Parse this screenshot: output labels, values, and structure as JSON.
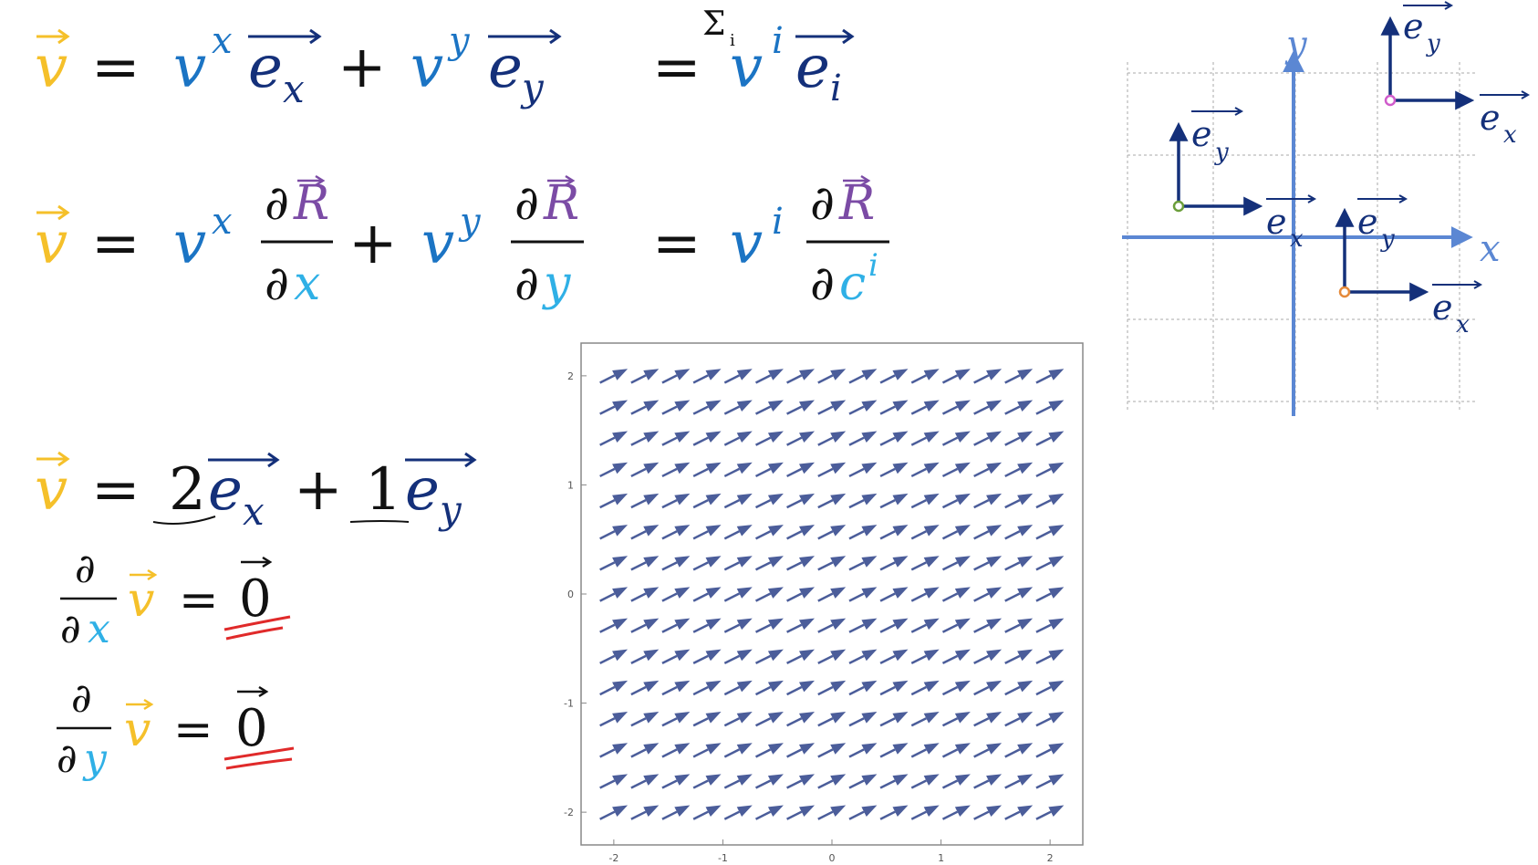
{
  "colors": {
    "v_vector": "#F5C02A",
    "component": "#1B74C4",
    "basis": "#14307A",
    "position_R": "#7B4BA5",
    "coordinate": "#2FB0E6",
    "black": "#111111",
    "red_underline": "#E02A2A",
    "axis_blue": "#5B87D3",
    "grid_gray": "#A9A9A9",
    "field_arrow": "#4B5D9A",
    "dot_green": "#6B9E3B",
    "dot_pink": "#D05CCB",
    "dot_orange": "#E58A3A"
  },
  "equations": {
    "eq1": {
      "v": "v",
      "eq": "=",
      "vx": "v",
      "sup_x": "x",
      "e": "e",
      "sub_x": "x",
      "plus": "+",
      "vy": "v",
      "sup_y": "y",
      "sub_y": "y",
      "eq2": "=",
      "vi": "v",
      "sup_i": "i",
      "sub_i": "i",
      "note": "Σ",
      "note_sub": "i"
    },
    "eq2": {
      "v": "v",
      "eq": "=",
      "vx": "v",
      "sup_x": "x",
      "partial": "∂",
      "R": "R",
      "den_x": "x",
      "plus": "+",
      "vy": "v",
      "sup_y": "y",
      "den_y": "y",
      "eq2": "=",
      "vi": "v",
      "sup_i": "i",
      "den_c": "c",
      "den_sup_i": "i"
    },
    "eq3": {
      "v": "v",
      "eq": "=",
      "coef1": "2",
      "e": "e",
      "sub_x": "x",
      "plus": "+",
      "coef2": "1",
      "sub_y": "y"
    },
    "eq4": {
      "partial": "∂",
      "den_x": "x",
      "v": "v",
      "eq": "=",
      "zero": "0"
    },
    "eq5": {
      "partial": "∂",
      "den_y": "y",
      "v": "v",
      "eq": "=",
      "zero": "0"
    }
  },
  "axes_diagram": {
    "x_label": "x",
    "y_label": "y",
    "e": "e",
    "sub_x": "x",
    "sub_y": "y"
  },
  "chart_data": {
    "type": "quiver",
    "vector": [
      2,
      1
    ],
    "xlim": [
      -2.3,
      2.3
    ],
    "ylim": [
      -2.3,
      2.3
    ],
    "x_ticks": [
      -2,
      -1,
      0,
      1,
      2
    ],
    "y_ticks": [
      -2,
      -1,
      0,
      1,
      2
    ],
    "x_tick_labels": [
      "-2",
      "-1",
      "0",
      "1",
      "2"
    ],
    "y_tick_labels": [
      "-2",
      "-1",
      "0",
      "1",
      "2"
    ],
    "grid_x": [
      -2,
      -1.714,
      -1.429,
      -1.143,
      -0.857,
      -0.571,
      -0.286,
      0,
      0.286,
      0.571,
      0.857,
      1.143,
      1.429,
      1.714,
      2
    ],
    "grid_y": [
      -2,
      -1.714,
      -1.429,
      -1.143,
      -0.857,
      -0.571,
      -0.286,
      0,
      0.286,
      0.571,
      0.857,
      1.143,
      1.429,
      1.714,
      2
    ],
    "title": "",
    "xlabel": "",
    "ylabel": ""
  }
}
